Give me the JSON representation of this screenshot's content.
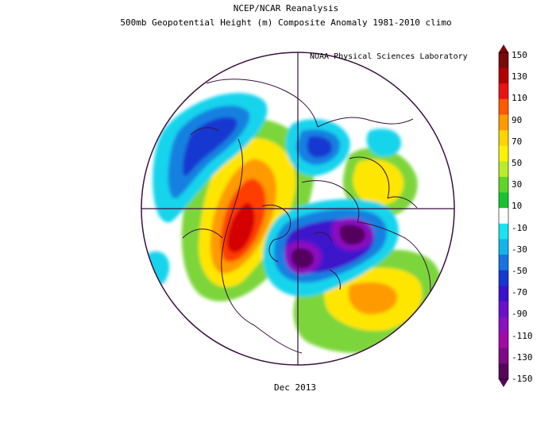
{
  "header": {
    "title_line1": "NCEP/NCAR Reanalysis",
    "title_line2": "500mb Geopotential Height (m) Composite Anomaly 1981-2010 climo",
    "credit": "NOAA Physical Sciences Laboratory"
  },
  "footer": {
    "date_label": "Dec 2013"
  },
  "colorbar": {
    "labels": [
      "150",
      "130",
      "110",
      "90",
      "70",
      "50",
      "30",
      "10",
      "-10",
      "-30",
      "-50",
      "-70",
      "-90",
      "-110",
      "-130",
      "-150"
    ],
    "colors": [
      "#7a0a0a",
      "#b40000",
      "#e81414",
      "#ff5a00",
      "#ff9b00",
      "#ffd400",
      "#fff200",
      "#b9ec2a",
      "#5fd52b",
      "#18c331",
      "#ffffff",
      "#19e3f0",
      "#14b3ea",
      "#1673df",
      "#1638d0",
      "#3c12cc",
      "#6a10c9",
      "#8b10bf",
      "#a00aa5",
      "#7d0a84",
      "#55065b"
    ]
  },
  "map": {
    "projection": "north-polar-stereographic",
    "anomalies": [
      {
        "region": "western North America",
        "sign": "positive",
        "peak_m": 150
      },
      {
        "region": "eastern Europe",
        "sign": "positive",
        "peak_m": 70
      },
      {
        "region": "central Atlantic",
        "sign": "positive",
        "peak_m": 90
      },
      {
        "region": "Hudson Bay / Baffin Island",
        "sign": "negative",
        "peak_m": -150
      },
      {
        "region": "Barents / Kara Sea",
        "sign": "negative",
        "peak_m": -140
      },
      {
        "region": "Siberia",
        "sign": "negative",
        "peak_m": -60
      },
      {
        "region": "Gulf of Alaska / Bering",
        "sign": "negative",
        "peak_m": -40
      }
    ]
  }
}
